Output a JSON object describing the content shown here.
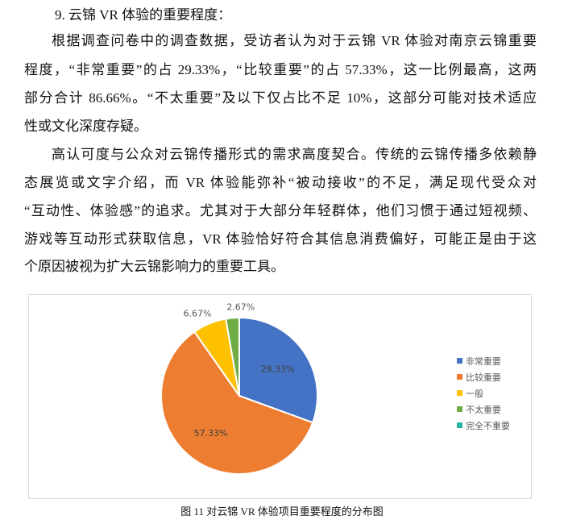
{
  "heading": "9. 云锦 VR 体验的重要程度：",
  "paragraph1": [
    "根据调查问卷中的调查数据，受访者认为对于云锦 VR 体验对南京云锦重要",
    "程度，“非常重要”的占 29.33%，“比较重要”的占 57.33%，这一比例最高，这两",
    "部分合计 86.66%。“不太重要”及以下仅占比不足 10%，这部分可能对技术适应",
    "性或文化深度存疑。"
  ],
  "paragraph2": [
    "高认可度与公众对云锦传播形式的需求高度契合。传统的云锦传播多依赖静",
    "态展览或文字介绍，而 VR 体验能弥补“被动接收”的不足，满足现代受众对",
    "“互动性、体验感”的追求。尤其对于大部分年轻群体，他们习惯于通过短视频、",
    "游戏等互动形式获取信息，VR 体验恰好符合其信息消费偏好，可能正是由于这",
    "个原因被视为扩大云锦影响力的重要工具。"
  ],
  "caption": "图 11  对云锦 VR 体验项目重要程度的分布图",
  "chart_data": {
    "type": "pie",
    "start": "12 o'clock, clockwise",
    "legend_position": "right",
    "categories": [
      "非常重要",
      "比较重要",
      "一般",
      "不太重要",
      "完全不重要"
    ],
    "values": [
      29.33,
      57.33,
      6.67,
      2.67,
      0
    ],
    "labels": [
      "29.33%",
      "57.33%",
      "6.67%",
      "2.67%",
      ""
    ],
    "colors": [
      "#4472C4",
      "#ED7D31",
      "#FFC000",
      "#70AD47",
      "#26B5A6"
    ]
  }
}
